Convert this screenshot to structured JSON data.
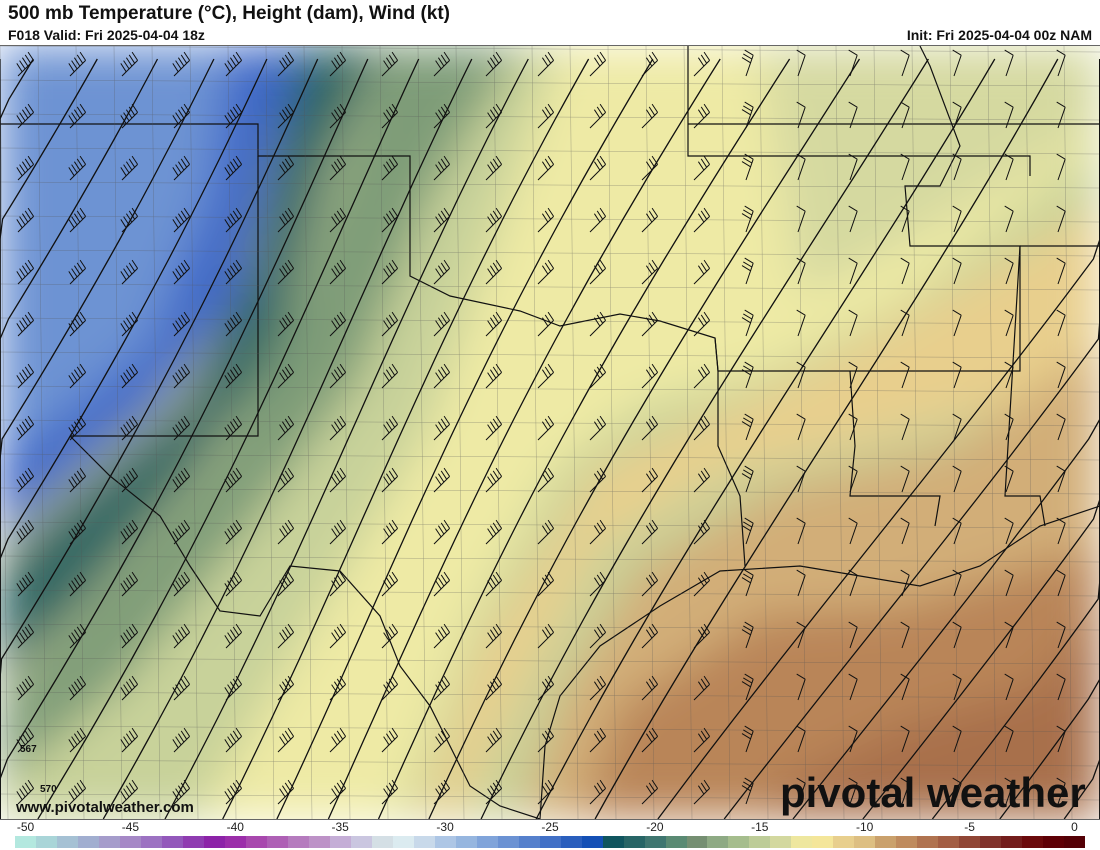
{
  "header": {
    "title": "500 mb Temperature (°C), Height (dam), Wind (kt)",
    "valid": "F018 Valid: Fri 2025-04-04 18z",
    "init": "Init: Fri 2025-04-04 00z NAM"
  },
  "map": {
    "contour_labels": [
      "567",
      "570"
    ],
    "watermark_url": "www.pivotalweather.com",
    "logo": "pivotal weather"
  },
  "colorbar": {
    "ticks": [
      "-50",
      "-45",
      "-40",
      "-35",
      "-30",
      "-25",
      "-20",
      "-15",
      "-10",
      "-5",
      "0"
    ],
    "range": [
      -50,
      0
    ],
    "colors": [
      "#b3e8df",
      "#a9d5d8",
      "#a5c1d4",
      "#a1aed0",
      "#a59ccb",
      "#a588c6",
      "#9c72c2",
      "#9358bb",
      "#8f3cb1",
      "#8c23a8",
      "#9b2eaa",
      "#a848ae",
      "#ae60b5",
      "#b57bbe",
      "#bd92c7",
      "#c4add6",
      "#cac6e0",
      "#d4dfe5",
      "#dbebf0",
      "#c8d9ea",
      "#adc6e5",
      "#96b6df",
      "#80a4da",
      "#6b92d3",
      "#5580cc",
      "#4170c6",
      "#2a5fbd",
      "#1450b5",
      "#10555f",
      "#276566",
      "#3f7670",
      "#5a8a73",
      "#758f72",
      "#8eaa84",
      "#a5bd8d",
      "#bdcc98",
      "#d3d89f",
      "#eee79f",
      "#f4e69a",
      "#e8cf8d",
      "#ddbf82",
      "#caa16c",
      "#bf8b5e",
      "#b07350",
      "#a35e44",
      "#904635",
      "#80322b",
      "#731d1c",
      "#6b0a0c",
      "#5e0006",
      "#540006"
    ]
  }
}
